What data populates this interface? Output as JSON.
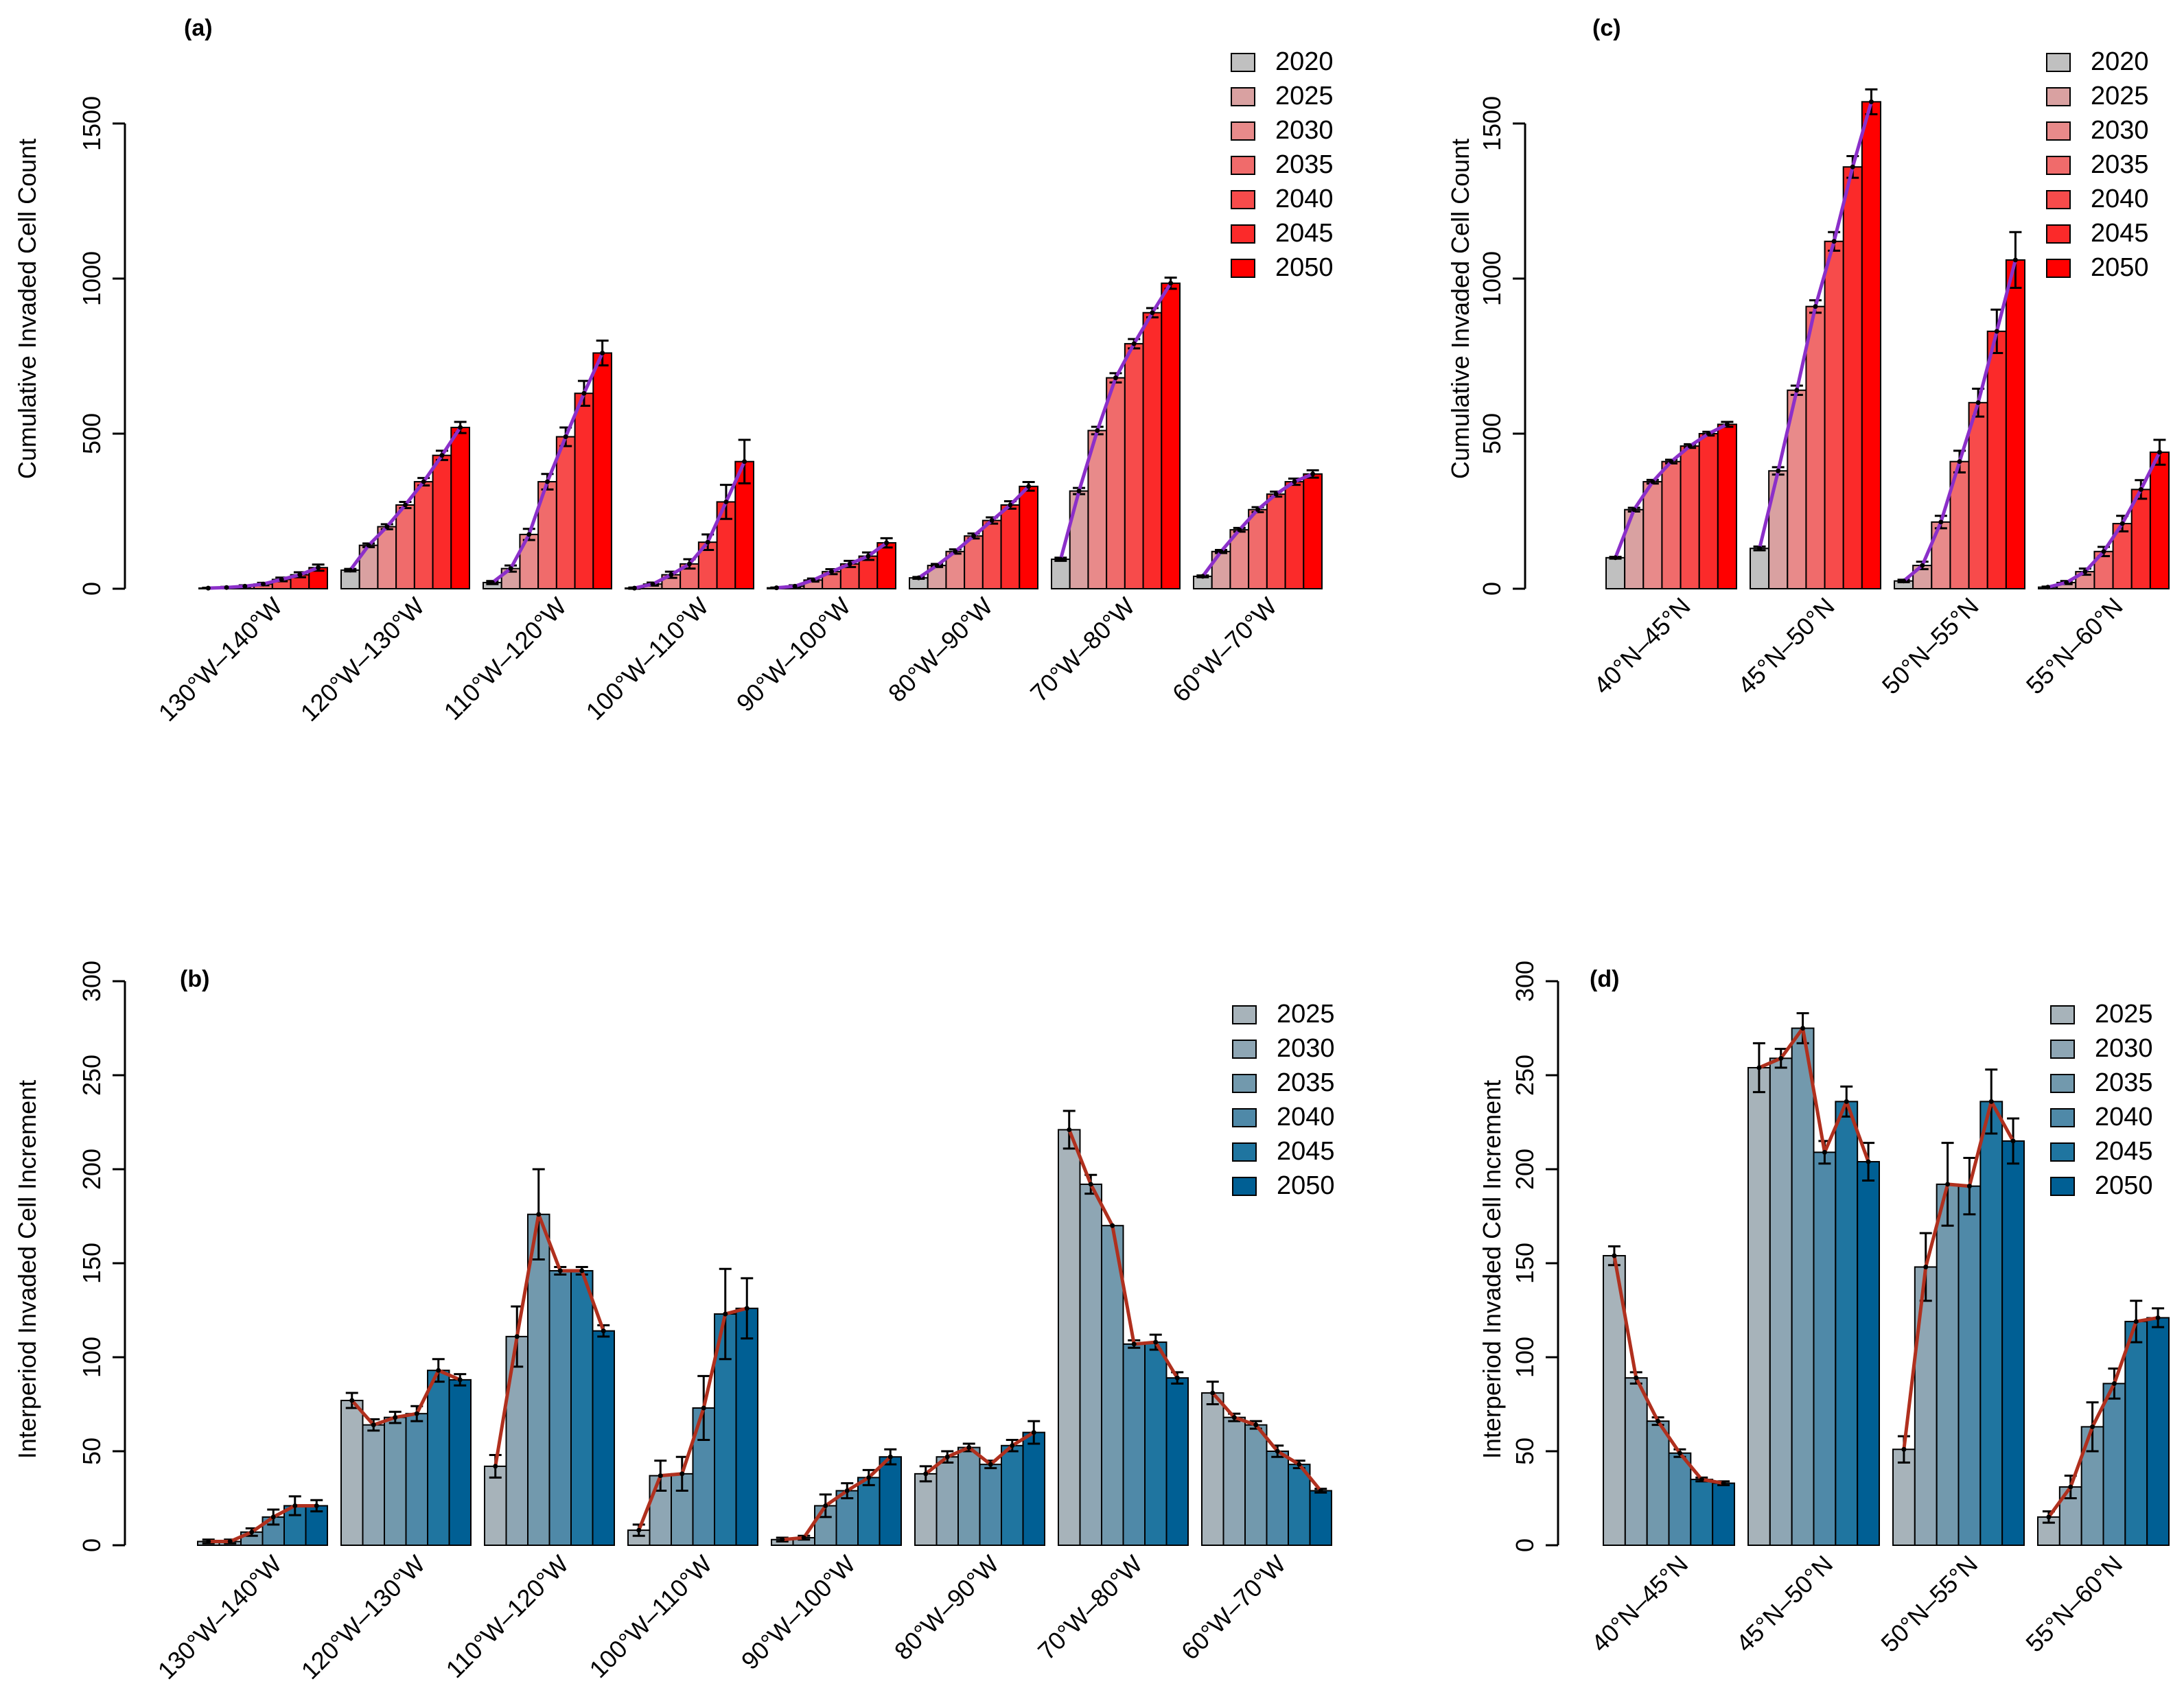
{
  "colors": {
    "years_a": [
      "#c0c0c0",
      "#d9a1a1",
      "#e88a8a",
      "#f06b6b",
      "#f74b4b",
      "#fb2a2a",
      "#ff0000"
    ],
    "years_b": [
      "#c0c0c0",
      "#a7b3ba",
      "#8ea6b4",
      "#7299ad",
      "#4f89a8",
      "#1f75a0",
      "#005f94"
    ],
    "trend_line_top": "#8b2fc9",
    "trend_line_bottom": "#b0301e"
  },
  "chart_data": [
    {
      "id": "a",
      "panel_label": "(a)",
      "type": "bar",
      "ylabel": "Cumulative Invaded Cell Count",
      "ylim": [
        0,
        1500
      ],
      "yticks": [
        "0",
        "500",
        "1000",
        "1500"
      ],
      "yticks_values": [
        0,
        500,
        1000,
        1500
      ],
      "legend_title": "",
      "legend": [
        "2020",
        "2025",
        "2030",
        "2035",
        "2040",
        "2045",
        "2050"
      ],
      "categories": [
        "130°W–140°W",
        "120°W–130°W",
        "110°W–120°W",
        "100°W–110°W",
        "90°W–100°W",
        "80°W–90°W",
        "70°W–80°W",
        "60°W–70°W"
      ],
      "values": [
        [
          2,
          4,
          8,
          15,
          30,
          45,
          68
        ],
        [
          60,
          140,
          200,
          270,
          345,
          430,
          520
        ],
        [
          20,
          65,
          175,
          345,
          490,
          630,
          760
        ],
        [
          2,
          15,
          45,
          80,
          150,
          280,
          410
        ],
        [
          3,
          8,
          28,
          55,
          80,
          105,
          148
        ],
        [
          35,
          75,
          120,
          170,
          220,
          270,
          330
        ],
        [
          95,
          315,
          510,
          680,
          790,
          890,
          985
        ],
        [
          40,
          120,
          190,
          255,
          305,
          345,
          370
        ]
      ],
      "errors": [
        [
          1,
          2,
          3,
          4,
          6,
          8,
          10
        ],
        [
          4,
          6,
          8,
          10,
          12,
          15,
          18
        ],
        [
          5,
          10,
          18,
          25,
          30,
          40,
          40
        ],
        [
          2,
          5,
          10,
          15,
          25,
          55,
          70
        ],
        [
          1,
          3,
          5,
          8,
          10,
          12,
          15
        ],
        [
          3,
          5,
          7,
          8,
          10,
          12,
          14
        ],
        [
          5,
          10,
          12,
          15,
          15,
          15,
          18
        ],
        [
          3,
          5,
          6,
          8,
          8,
          10,
          12
        ]
      ]
    },
    {
      "id": "b",
      "panel_label": "(b)",
      "type": "bar",
      "ylabel": "Interperiod Invaded Cell Increment",
      "ylim": [
        0,
        300
      ],
      "yticks": [
        "0",
        "50",
        "100",
        "150",
        "200",
        "250",
        "300"
      ],
      "yticks_values": [
        0,
        50,
        100,
        150,
        200,
        250,
        300
      ],
      "legend": [
        "2025",
        "2030",
        "2035",
        "2040",
        "2045",
        "2050"
      ],
      "categories": [
        "130°W–140°W",
        "120°W–130°W",
        "110°W–120°W",
        "100°W–110°W",
        "90°W–100°W",
        "80°W–90°W",
        "70°W–80°W",
        "60°W–70°W"
      ],
      "values": [
        [
          2,
          2,
          7,
          15,
          21,
          21
        ],
        [
          77,
          64,
          68,
          70,
          93,
          88
        ],
        [
          42,
          111,
          176,
          146,
          146,
          114
        ],
        [
          8,
          37,
          38,
          73,
          123,
          126
        ],
        [
          3,
          4,
          21,
          29,
          36,
          47
        ],
        [
          38,
          47,
          52,
          43,
          53,
          60
        ],
        [
          221,
          192,
          170,
          107,
          108,
          89
        ],
        [
          81,
          68,
          64,
          50,
          43,
          29
        ]
      ],
      "errors": [
        [
          1,
          1,
          2,
          4,
          5,
          3
        ],
        [
          4,
          3,
          3,
          4,
          6,
          3
        ],
        [
          6,
          16,
          24,
          2,
          2,
          3
        ],
        [
          3,
          8,
          9,
          17,
          24,
          16
        ],
        [
          1,
          1,
          6,
          4,
          4,
          4
        ],
        [
          4,
          3,
          2,
          2,
          3,
          6
        ],
        [
          10,
          5,
          0,
          2,
          4,
          3
        ],
        [
          6,
          2,
          2,
          3,
          2,
          1
        ]
      ]
    },
    {
      "id": "c",
      "panel_label": "(c)",
      "type": "bar",
      "ylabel": "Cumulative Invaded Cell Count",
      "ylim": [
        0,
        1500
      ],
      "yticks": [
        "0",
        "500",
        "1000",
        "1500"
      ],
      "yticks_values": [
        0,
        500,
        1000,
        1500
      ],
      "legend": [
        "2020",
        "2025",
        "2030",
        "2035",
        "2040",
        "2045",
        "2050"
      ],
      "categories": [
        "40°N–45°N",
        "45°N–50°N",
        "50°N–55°N",
        "55°N–60°N"
      ],
      "values": [
        [
          100,
          255,
          345,
          410,
          460,
          500,
          530
        ],
        [
          130,
          380,
          640,
          910,
          1120,
          1360,
          1570
        ],
        [
          25,
          75,
          215,
          410,
          600,
          830,
          1060
        ],
        [
          5,
          20,
          55,
          120,
          210,
          320,
          440
        ]
      ],
      "errors": [
        [
          3,
          6,
          6,
          6,
          6,
          6,
          8
        ],
        [
          6,
          12,
          15,
          20,
          30,
          35,
          40
        ],
        [
          4,
          12,
          20,
          35,
          45,
          70,
          90
        ],
        [
          2,
          5,
          10,
          15,
          25,
          30,
          40
        ]
      ]
    },
    {
      "id": "d",
      "panel_label": "(d)",
      "type": "bar",
      "ylabel": "Interperiod Invaded Cell Increment",
      "ylim": [
        0,
        300
      ],
      "yticks": [
        "0",
        "50",
        "100",
        "150",
        "200",
        "250",
        "300"
      ],
      "yticks_values": [
        0,
        50,
        100,
        150,
        200,
        250,
        300
      ],
      "legend": [
        "2025",
        "2030",
        "2035",
        "2040",
        "2045",
        "2050"
      ],
      "categories": [
        "40°N–45°N",
        "45°N–50°N",
        "50°N–55°N",
        "55°N–60°N"
      ],
      "values": [
        [
          154,
          89,
          66,
          49,
          35,
          33
        ],
        [
          254,
          259,
          275,
          209,
          236,
          204
        ],
        [
          51,
          148,
          192,
          191,
          236,
          215
        ],
        [
          15,
          31,
          63,
          86,
          119,
          121
        ]
      ],
      "errors": [
        [
          5,
          3,
          2,
          2,
          1,
          1
        ],
        [
          13,
          5,
          8,
          6,
          8,
          10
        ],
        [
          7,
          18,
          22,
          15,
          17,
          12
        ],
        [
          3,
          6,
          13,
          8,
          11,
          5
        ]
      ]
    }
  ]
}
